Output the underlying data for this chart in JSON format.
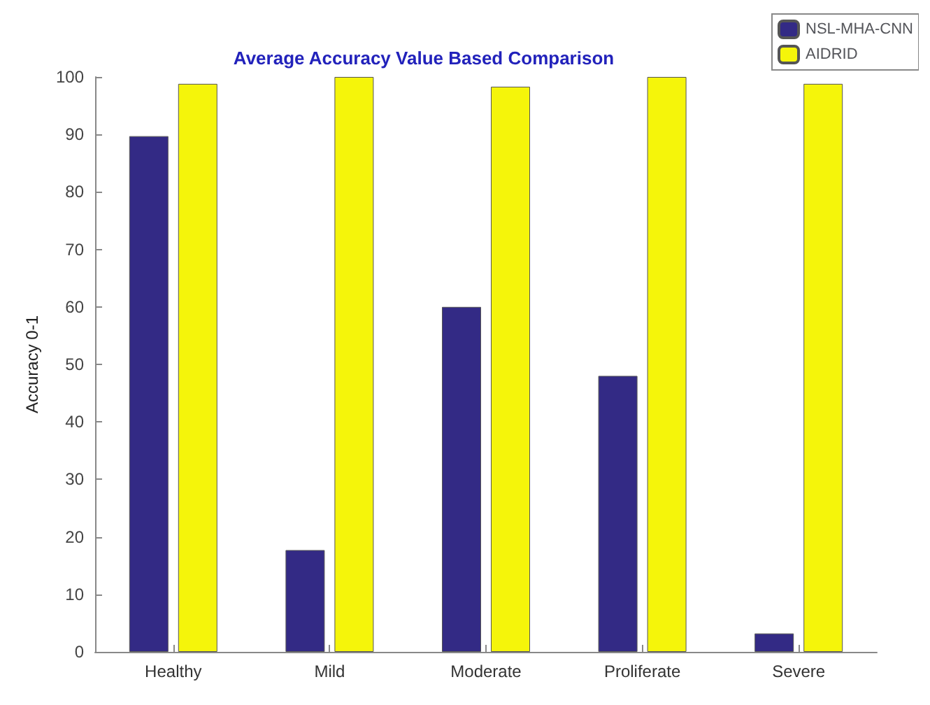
{
  "chart_data": {
    "type": "bar",
    "title": "Average Accuracy Value Based Comparison",
    "ylabel": "Accuracy 0-1",
    "categories": [
      "Healthy",
      "Mild",
      "Moderate",
      "Proliferate",
      "Severe"
    ],
    "series": [
      {
        "name": "NSL-MHA-CNN",
        "color": "#332a85",
        "values": [
          89.7,
          17.7,
          60,
          48,
          3.2
        ]
      },
      {
        "name": "AIDRID",
        "color": "#f5f50a",
        "values": [
          98.8,
          100,
          98.3,
          100,
          98.8
        ]
      }
    ],
    "ylim": [
      0,
      100
    ],
    "yticks": [
      0,
      10,
      20,
      30,
      40,
      50,
      60,
      70,
      80,
      90,
      100
    ],
    "grid": false,
    "legend": "top right"
  }
}
